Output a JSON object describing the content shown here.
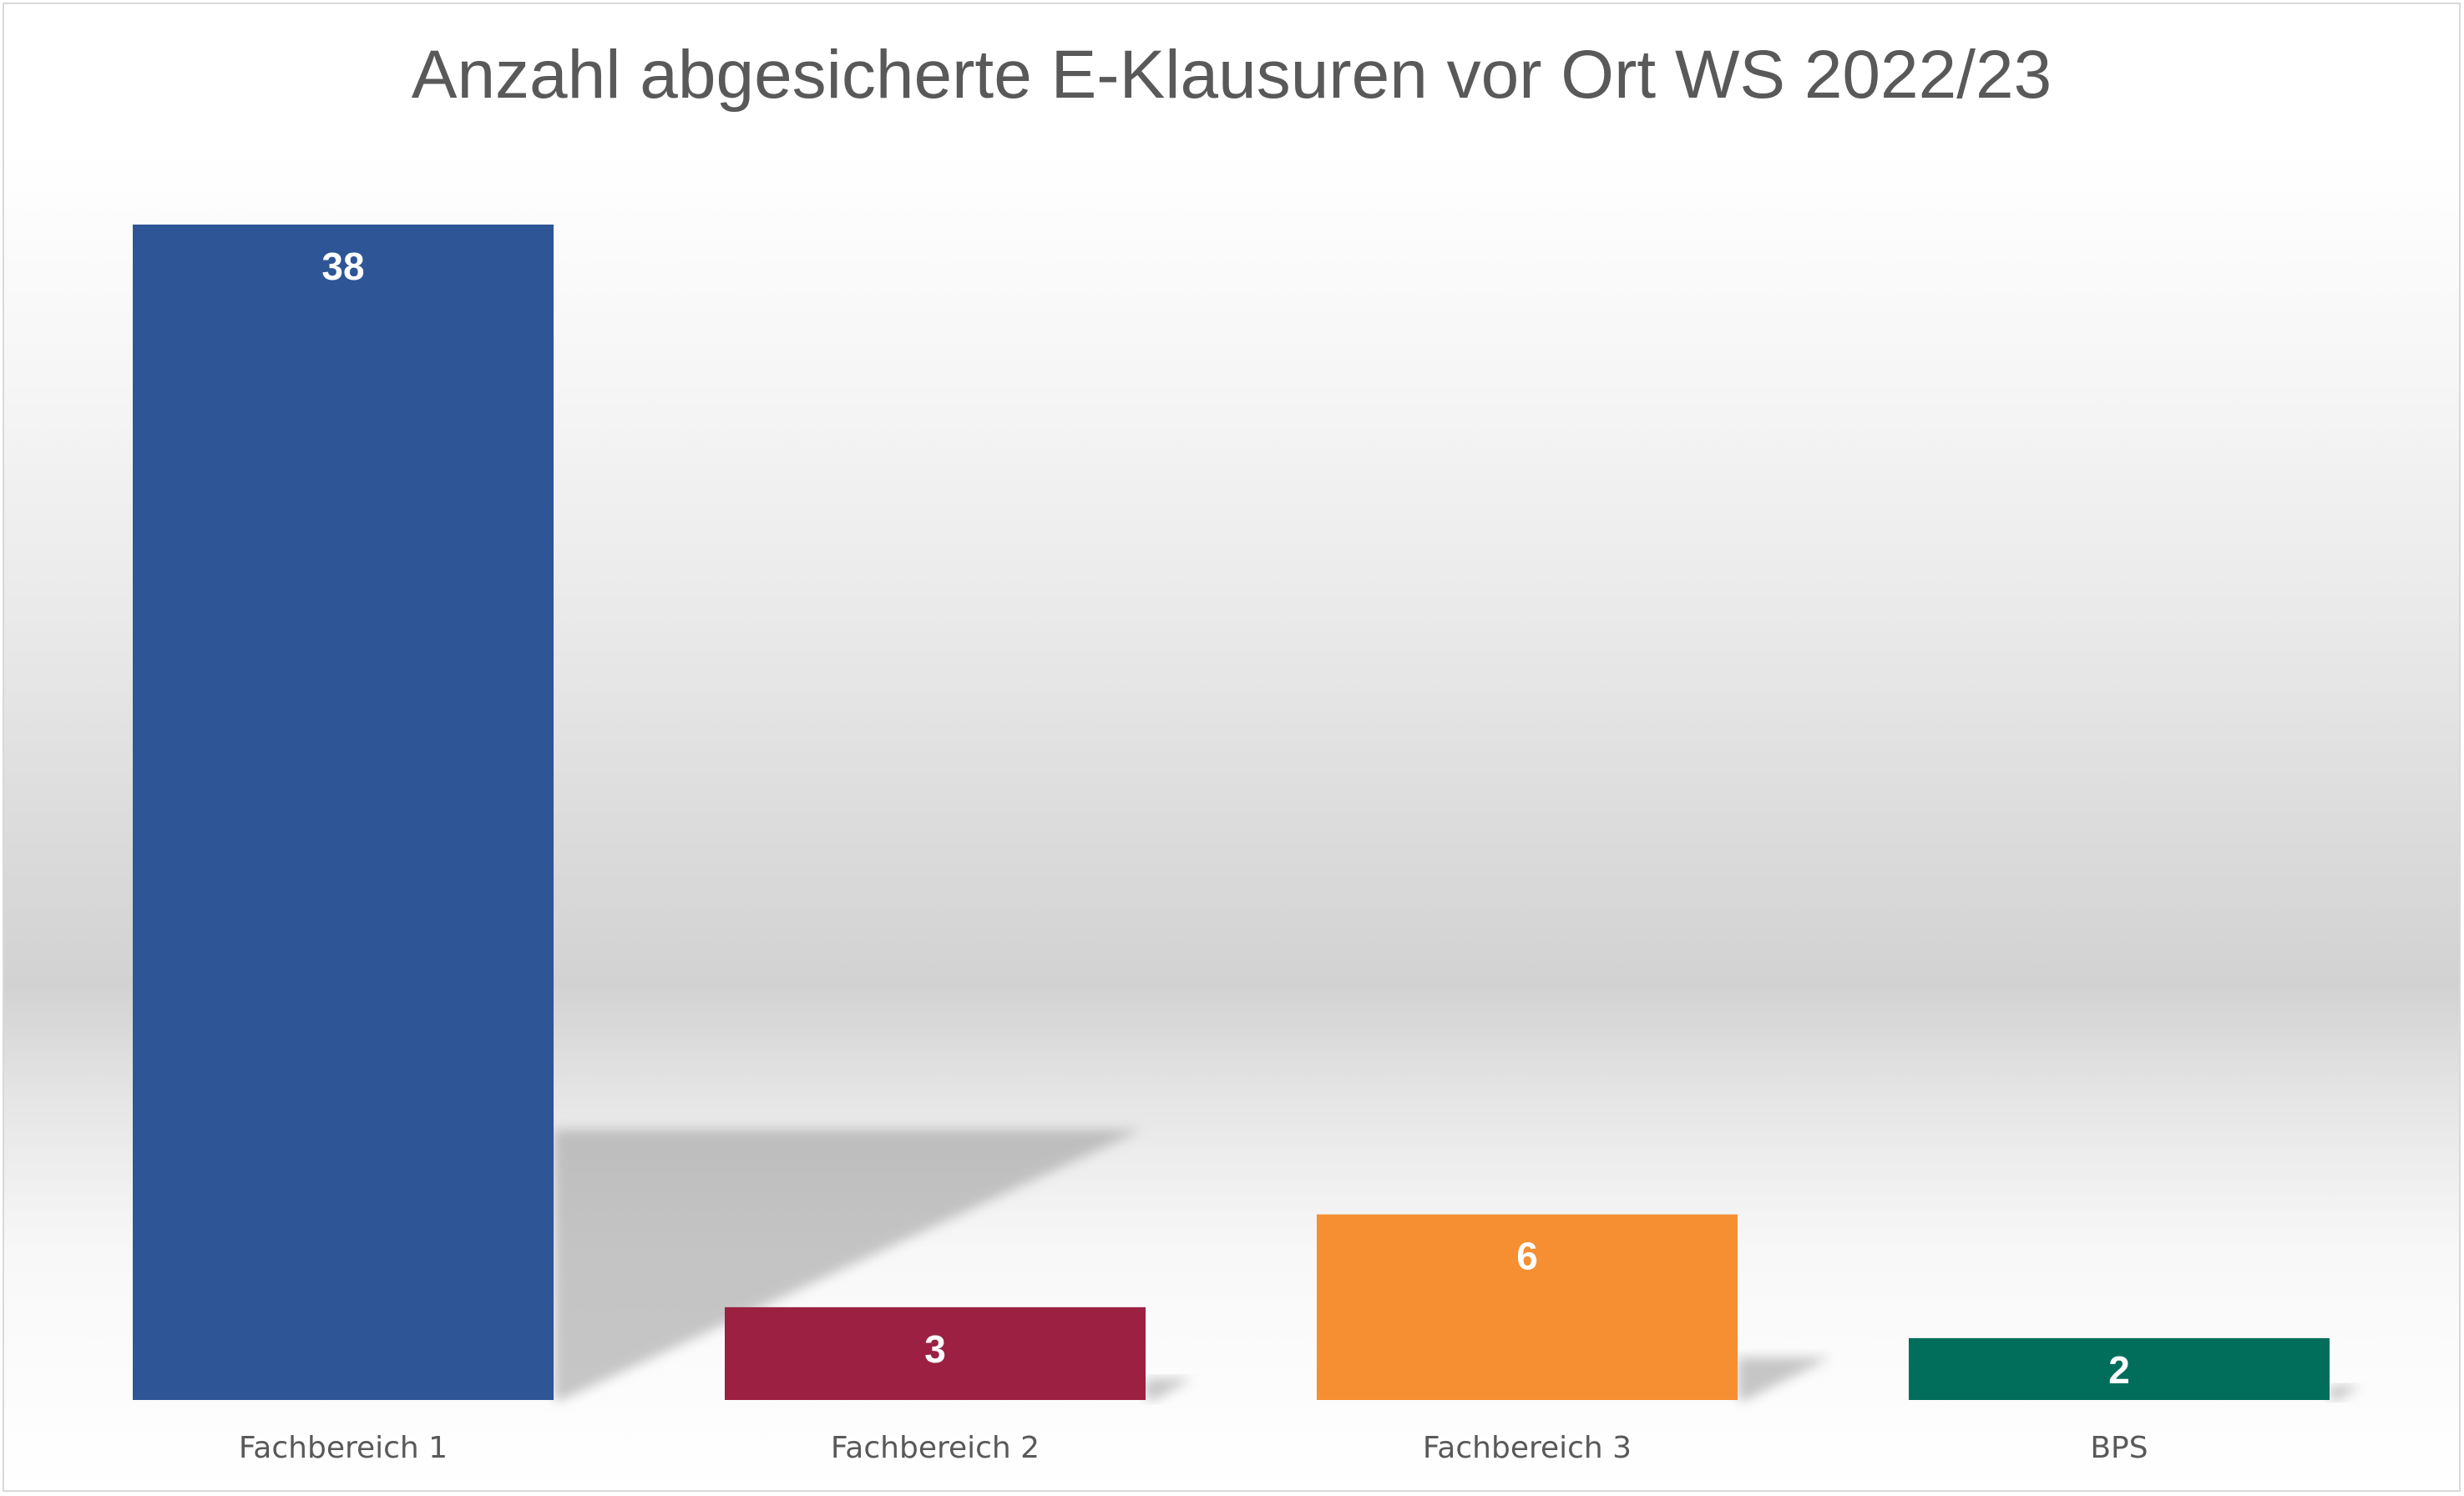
{
  "chart_data": {
    "type": "bar",
    "title": "Anzahl abgesicherte E-Klausuren vor Ort WS 2022/23",
    "categories": [
      "Fachbereich 1",
      "Fachbereich 2",
      "Fachbereich 3",
      "BPS"
    ],
    "values": [
      38,
      3,
      6,
      2
    ],
    "data_labels": [
      "38",
      "3",
      "6",
      "2"
    ],
    "bar_colors": [
      "#2E5596",
      "#9B2042",
      "#F58F32",
      "#006E5B"
    ],
    "xlabel": "",
    "ylabel": "",
    "ylim": [
      0,
      38
    ],
    "grid": false,
    "legend": "none"
  }
}
